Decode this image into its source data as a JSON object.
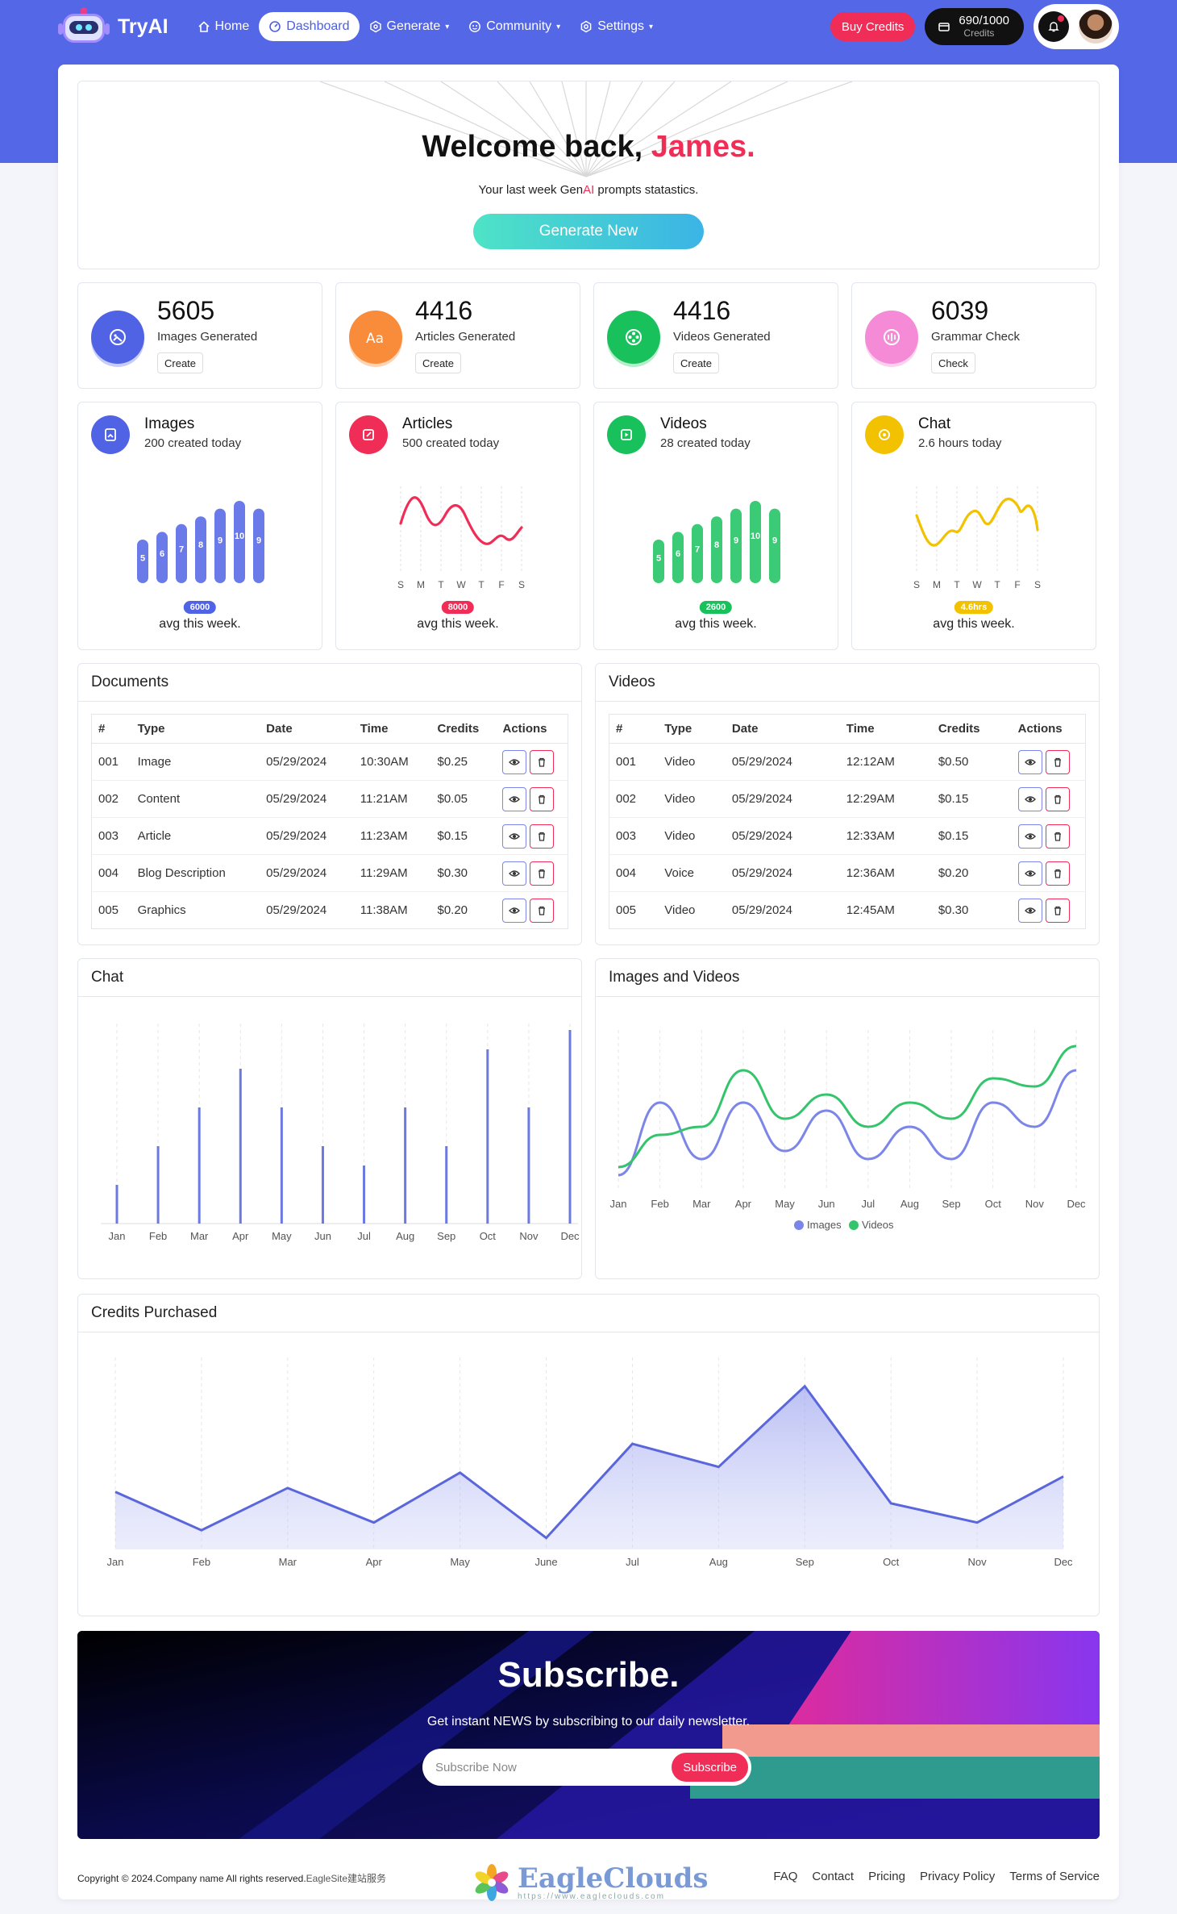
{
  "nav": {
    "brand": "TryAI",
    "items": [
      {
        "label": "Home",
        "icon": "home-icon",
        "caret": ""
      },
      {
        "label": "Dashboard",
        "icon": "dashboard-icon",
        "caret": ""
      },
      {
        "label": "Generate",
        "icon": "generate-icon",
        "caret": "▾"
      },
      {
        "label": "Community",
        "icon": "community-icon",
        "caret": "▾"
      },
      {
        "label": "Settings",
        "icon": "settings-icon",
        "caret": "▾"
      }
    ],
    "buy_credits": "Buy Credits",
    "credits_value": "690/1000",
    "credits_label": "Credits"
  },
  "welcome": {
    "title_prefix": "Welcome back, ",
    "name": "James.",
    "subtitle_pre": "Your last week Gen",
    "subtitle_ai": "AI",
    "subtitle_post": " prompts statastics.",
    "button": "Generate New"
  },
  "stats": [
    {
      "value": "5605",
      "label": "Images Generated",
      "button": "Create",
      "color": "#5163e5"
    },
    {
      "value": "4416",
      "label": "Articles Generated",
      "button": "Create",
      "color": "#f98c3a"
    },
    {
      "value": "4416",
      "label": "Videos Generated",
      "button": "Create",
      "color": "#19c15d"
    },
    {
      "value": "6039",
      "label": "Grammar Check",
      "button": "Check",
      "color": "#f58ad6"
    }
  ],
  "minis": [
    {
      "title": "Images",
      "sub": "200 created today",
      "badge": "6000",
      "avg": "avg this week.",
      "color": "#5163e5",
      "chart": "bar",
      "values": [
        5,
        6,
        7,
        8,
        9,
        10,
        9
      ]
    },
    {
      "title": "Articles",
      "sub": "500 created today",
      "badge": "8000",
      "avg": "avg this week.",
      "color": "#ef2d56",
      "chart": "line",
      "days": [
        "S",
        "M",
        "T",
        "W",
        "T",
        "F",
        "S"
      ]
    },
    {
      "title": "Videos",
      "sub": "28 created today",
      "badge": "2600",
      "avg": "avg this week.",
      "color": "#19c15d",
      "chart": "bar",
      "values": [
        5,
        6,
        7,
        8,
        9,
        10,
        9
      ]
    },
    {
      "title": "Chat",
      "sub": "2.6 hours today",
      "badge": "4.6hrs",
      "avg": "avg this week.",
      "color": "#f2c200",
      "chart": "line",
      "days": [
        "S",
        "M",
        "T",
        "W",
        "T",
        "F",
        "S"
      ]
    }
  ],
  "documents": {
    "title": "Documents",
    "columns": [
      "#",
      "Type",
      "Date",
      "Time",
      "Credits",
      "Actions"
    ],
    "rows": [
      [
        "001",
        "Image",
        "05/29/2024",
        "10:30AM",
        "$0.25"
      ],
      [
        "002",
        "Content",
        "05/29/2024",
        "11:21AM",
        "$0.05"
      ],
      [
        "003",
        "Article",
        "05/29/2024",
        "11:23AM",
        "$0.15"
      ],
      [
        "004",
        "Blog Description",
        "05/29/2024",
        "11:29AM",
        "$0.30"
      ],
      [
        "005",
        "Graphics",
        "05/29/2024",
        "11:38AM",
        "$0.20"
      ]
    ]
  },
  "videos": {
    "title": "Videos",
    "columns": [
      "#",
      "Type",
      "Date",
      "Time",
      "Credits",
      "Actions"
    ],
    "rows": [
      [
        "001",
        "Video",
        "05/29/2024",
        "12:12AM",
        "$0.50"
      ],
      [
        "002",
        "Video",
        "05/29/2024",
        "12:29AM",
        "$0.15"
      ],
      [
        "003",
        "Video",
        "05/29/2024",
        "12:33AM",
        "$0.15"
      ],
      [
        "004",
        "Voice",
        "05/29/2024",
        "12:36AM",
        "$0.20"
      ],
      [
        "005",
        "Video",
        "05/29/2024",
        "12:45AM",
        "$0.30"
      ]
    ]
  },
  "chart_data": [
    {
      "type": "bar",
      "title": "Chat",
      "categories": [
        "Jan",
        "Feb",
        "Mar",
        "Apr",
        "May",
        "Jun",
        "Jul",
        "Aug",
        "Sep",
        "Oct",
        "Nov",
        "Dec"
      ],
      "values": [
        2,
        4,
        6,
        8,
        6,
        4,
        3,
        6,
        4,
        9,
        6,
        10
      ],
      "ylim": [
        0,
        10
      ]
    },
    {
      "type": "line",
      "title": "Images and Videos",
      "categories": [
        "Jan",
        "Feb",
        "Mar",
        "Apr",
        "May",
        "Jun",
        "Jul",
        "Aug",
        "Sep",
        "Oct",
        "Nov",
        "Dec"
      ],
      "series": [
        {
          "name": "Images",
          "color": "#7b86e8",
          "values": [
            1,
            5.5,
            2,
            5.5,
            2.5,
            5,
            2,
            4,
            2,
            5.5,
            4,
            7.5
          ]
        },
        {
          "name": "Videos",
          "color": "#34c46b",
          "values": [
            1.5,
            3.5,
            4,
            7.5,
            4.5,
            6,
            4,
            5.5,
            4.5,
            7,
            6.5,
            9
          ]
        }
      ],
      "ylim": [
        0,
        10
      ],
      "legend": "bottom"
    },
    {
      "type": "area",
      "title": "Credits Purchased",
      "categories": [
        "Jan",
        "Feb",
        "Mar",
        "Apr",
        "May",
        "June",
        "Jul",
        "Aug",
        "Sep",
        "Oct",
        "Nov",
        "Dec"
      ],
      "values": [
        3,
        1,
        3.2,
        1.4,
        4,
        0.6,
        5.5,
        4.3,
        8.5,
        2.4,
        1.4,
        3.8
      ],
      "ylim": [
        0,
        10
      ]
    }
  ],
  "subscribe": {
    "title": "Subscribe.",
    "subtitle": "Get instant NEWS by subscribing to our daily newsletter.",
    "placeholder": "Subscribe Now",
    "button": "Subscribe"
  },
  "footer": {
    "copyright": "Copyright © 2024.Company name All rights reserved.",
    "credit": "EagleSite建站服务",
    "logo_name": "EagleClouds",
    "logo_url": "https://www.eagleclouds.com",
    "links": [
      "FAQ",
      "Contact",
      "Pricing",
      "Privacy Policy",
      "Terms of Service"
    ]
  }
}
